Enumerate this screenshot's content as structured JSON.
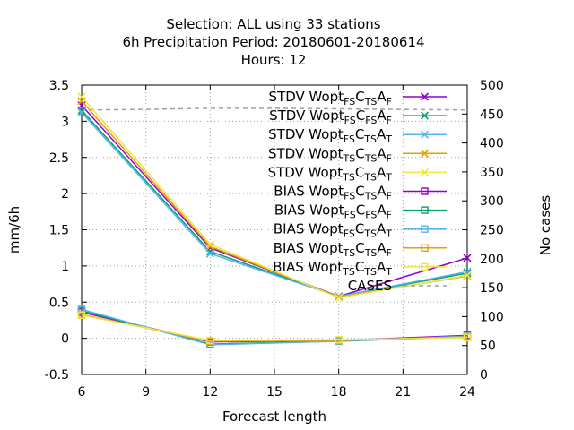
{
  "chart_data": {
    "type": "line",
    "title": [
      "Selection: ALL using    33 stations",
      "6h Precipitation   Period: 20180601-20180614",
      "Hours:  12"
    ],
    "xlabel": "Forecast length",
    "ylabel": "mm/6h",
    "y2label": "No cases",
    "xlim": [
      6,
      24
    ],
    "ylim": [
      -0.5,
      3.5
    ],
    "y2lim": [
      0,
      500
    ],
    "xticks": [
      "6",
      "9",
      "12",
      "15",
      "18",
      "21",
      "24"
    ],
    "yticks": [
      "-0.5",
      "0",
      "0.5",
      "1",
      "1.5",
      "2",
      "2.5",
      "3",
      "3.5"
    ],
    "y2ticks": [
      "0",
      "50",
      "100",
      "150",
      "200",
      "250",
      "300",
      "350",
      "400",
      "450",
      "500"
    ],
    "grid": true,
    "legend_position": "top-right",
    "x": [
      6,
      12,
      18,
      24
    ],
    "series": [
      {
        "name": "STDV Wopt FS C TS A F",
        "label_parts": [
          [
            "STDV Wopt",
            ""
          ],
          [
            "FS",
            "sub"
          ],
          [
            "C",
            ""
          ],
          [
            "TS",
            "sub"
          ],
          [
            "A",
            ""
          ],
          [
            "F",
            "sub"
          ]
        ],
        "color": "#9400d3",
        "marker": "x",
        "values": [
          3.22,
          1.25,
          0.58,
          1.11
        ]
      },
      {
        "name": "STDV Wopt FS C FS A F",
        "label_parts": [
          [
            "STDV Wopt",
            ""
          ],
          [
            "FS",
            "sub"
          ],
          [
            "C",
            ""
          ],
          [
            "FS",
            "sub"
          ],
          [
            "A",
            ""
          ],
          [
            "F",
            "sub"
          ]
        ],
        "color": "#009e73",
        "marker": "x",
        "values": [
          3.15,
          1.2,
          0.58,
          0.9
        ]
      },
      {
        "name": "STDV Wopt FS C TS A T",
        "label_parts": [
          [
            "STDV Wopt",
            ""
          ],
          [
            "FS",
            "sub"
          ],
          [
            "C",
            ""
          ],
          [
            "TS",
            "sub"
          ],
          [
            "A",
            ""
          ],
          [
            "T",
            "sub"
          ]
        ],
        "color": "#56b4e9",
        "marker": "x",
        "values": [
          3.12,
          1.17,
          0.58,
          0.92
        ]
      },
      {
        "name": "STDV Wopt TS C TS A F",
        "label_parts": [
          [
            "STDV Wopt",
            ""
          ],
          [
            "TS",
            "sub"
          ],
          [
            "C",
            ""
          ],
          [
            "TS",
            "sub"
          ],
          [
            "A",
            ""
          ],
          [
            "F",
            "sub"
          ]
        ],
        "color": "#e69f00",
        "marker": "x",
        "values": [
          3.28,
          1.27,
          0.57,
          0.86
        ]
      },
      {
        "name": "STDV Wopt TS C TS A T",
        "label_parts": [
          [
            "STDV Wopt",
            ""
          ],
          [
            "TS",
            "sub"
          ],
          [
            "C",
            ""
          ],
          [
            "TS",
            "sub"
          ],
          [
            "A",
            ""
          ],
          [
            "T",
            "sub"
          ]
        ],
        "color": "#f0e442",
        "marker": "x",
        "values": [
          3.34,
          1.3,
          0.56,
          0.87
        ]
      },
      {
        "name": "BIAS Wopt FS C TS A F",
        "label_parts": [
          [
            "BIAS Wopt",
            ""
          ],
          [
            "FS",
            "sub"
          ],
          [
            "C",
            ""
          ],
          [
            "TS",
            "sub"
          ],
          [
            "A",
            ""
          ],
          [
            "F",
            "sub"
          ]
        ],
        "color": "#9400d3",
        "marker": "square",
        "values": [
          0.36,
          -0.05,
          -0.03,
          0.04
        ]
      },
      {
        "name": "BIAS Wopt FS C FS A F",
        "label_parts": [
          [
            "BIAS Wopt",
            ""
          ],
          [
            "FS",
            "sub"
          ],
          [
            "C",
            ""
          ],
          [
            "FS",
            "sub"
          ],
          [
            "A",
            ""
          ],
          [
            "F",
            "sub"
          ]
        ],
        "color": "#009e73",
        "marker": "square",
        "values": [
          0.38,
          -0.08,
          -0.04,
          0.02
        ]
      },
      {
        "name": "BIAS Wopt FS C TS A T",
        "label_parts": [
          [
            "BIAS Wopt",
            ""
          ],
          [
            "FS",
            "sub"
          ],
          [
            "C",
            ""
          ],
          [
            "TS",
            "sub"
          ],
          [
            "A",
            ""
          ],
          [
            "T",
            "sub"
          ]
        ],
        "color": "#56b4e9",
        "marker": "square",
        "values": [
          0.4,
          -0.09,
          -0.04,
          0.03
        ]
      },
      {
        "name": "BIAS Wopt TS C TS A F",
        "label_parts": [
          [
            "BIAS Wopt",
            ""
          ],
          [
            "TS",
            "sub"
          ],
          [
            "C",
            ""
          ],
          [
            "TS",
            "sub"
          ],
          [
            "A",
            ""
          ],
          [
            "F",
            "sub"
          ]
        ],
        "color": "#e69f00",
        "marker": "square",
        "values": [
          0.33,
          -0.04,
          -0.03,
          0.02
        ]
      },
      {
        "name": "BIAS Wopt TS C TS A T",
        "label_parts": [
          [
            "BIAS Wopt",
            ""
          ],
          [
            "TS",
            "sub"
          ],
          [
            "C",
            ""
          ],
          [
            "TS",
            "sub"
          ],
          [
            "A",
            ""
          ],
          [
            "T",
            "sub"
          ]
        ],
        "color": "#f0e442",
        "marker": "square",
        "values": [
          0.32,
          -0.03,
          -0.02,
          0.01
        ]
      }
    ],
    "cases": {
      "name": "CASES",
      "label_parts": [
        [
          "CASES",
          ""
        ]
      ],
      "color": "#a0a0a0",
      "dash": true,
      "axis": "y2",
      "x": [
        6,
        9,
        12,
        15,
        18,
        21,
        24
      ],
      "values": [
        457,
        458,
        460,
        460,
        459,
        458,
        457
      ]
    }
  }
}
